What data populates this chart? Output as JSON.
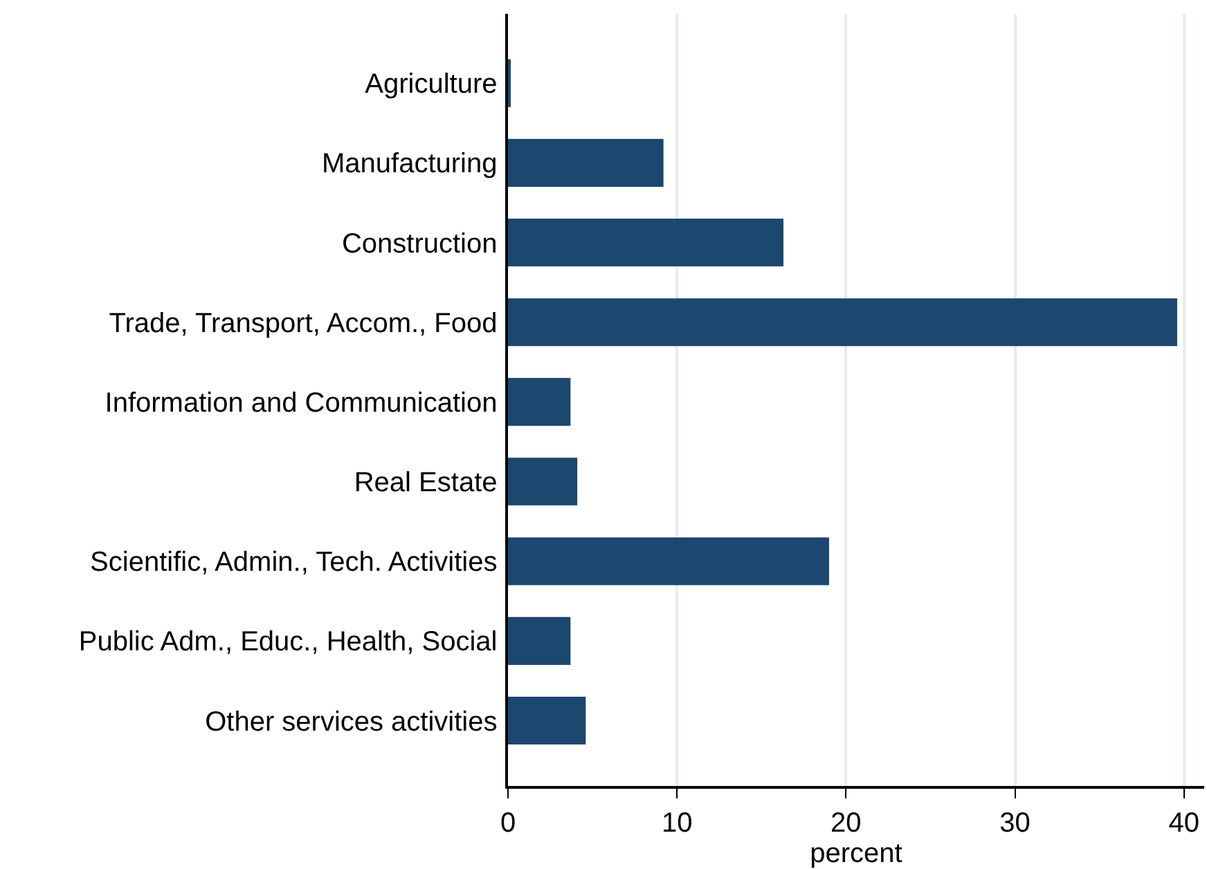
{
  "chart_data": {
    "type": "bar",
    "orientation": "horizontal",
    "xlabel": "percent",
    "categories": [
      "Agriculture",
      "Manufacturing",
      "Construction",
      "Trade, Transport, Accom., Food",
      "Information and Communication",
      "Real Estate",
      "Scientific, Admin., Tech. Activities",
      "Public Adm., Educ., Health, Social",
      "Other services activities"
    ],
    "values": [
      0.1,
      9.2,
      16.3,
      39.6,
      3.7,
      4.1,
      19.0,
      3.7,
      4.6
    ],
    "color": "#1c476f",
    "xlim": [
      0,
      41.2
    ],
    "xticks": [
      0,
      10,
      20,
      30,
      40
    ],
    "grid": "x"
  }
}
